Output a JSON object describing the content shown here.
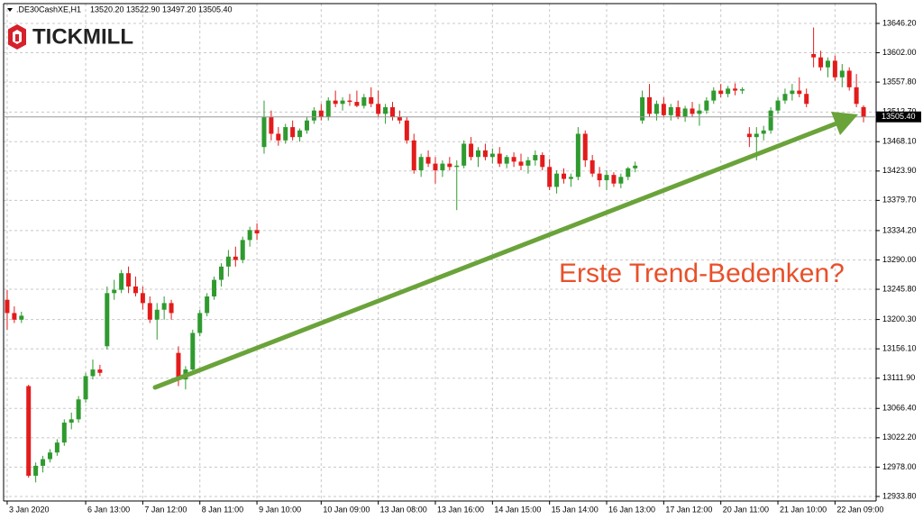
{
  "header": {
    "symbol": ".DE30CashXE,H1",
    "quote": [
      "13520.20",
      "13522.90",
      "13497.20",
      "13505.40"
    ]
  },
  "logo": "TICKMILL",
  "chart_data": {
    "type": "candlestick",
    "categories": [
      "3 Jan 2020",
      null,
      null,
      null,
      null,
      null,
      null,
      null,
      null,
      null,
      null,
      "6 Jan 13:00",
      null,
      null,
      null,
      null,
      null,
      null,
      null,
      "7 Jan 12:00",
      null,
      null,
      null,
      null,
      null,
      null,
      null,
      "8 Jan 11:00",
      null,
      null,
      null,
      null,
      null,
      null,
      null,
      "9 Jan 10:00",
      null,
      null,
      null,
      null,
      null,
      null,
      null,
      null,
      "10 Jan 09:00",
      null,
      null,
      null,
      null,
      null,
      null,
      null,
      "13 Jan 08:00",
      null,
      null,
      null,
      null,
      null,
      null,
      null,
      "13 Jan 16:00",
      null,
      null,
      null,
      null,
      null,
      null,
      null,
      "14 Jan 15:00",
      null,
      null,
      null,
      null,
      null,
      null,
      null,
      "15 Jan 14:00",
      null,
      null,
      null,
      null,
      null,
      null,
      null,
      "16 Jan 13:00",
      null,
      null,
      null,
      null,
      null,
      null,
      null,
      "17 Jan 12:00",
      null,
      null,
      null,
      null,
      null,
      null,
      null,
      "20 Jan 11:00",
      null,
      null,
      null,
      null,
      null,
      null,
      null,
      "21 Jan 10:00",
      null,
      null,
      null,
      null,
      null,
      null,
      null,
      "22 Jan 09:00",
      null,
      null,
      null,
      null
    ],
    "open": [
      13230,
      13210,
      13200,
      13100,
      12965,
      12980,
      12990,
      13000,
      13015,
      13045,
      13050,
      13080,
      13115,
      13125,
      13160,
      13240,
      13245,
      13270,
      13250,
      13240,
      13225,
      13200,
      13215,
      13225,
      13150,
      13110,
      13125,
      13180,
      13210,
      13235,
      13260,
      13280,
      13295,
      13290,
      13320,
      13335,
      13460,
      13505,
      13480,
      13470,
      13490,
      13475,
      13485,
      13500,
      13515,
      13505,
      13530,
      13525,
      13530,
      13528,
      13522,
      13535,
      13525,
      13510,
      13520,
      13505,
      13500,
      13470,
      13425,
      13445,
      13435,
      13425,
      13435,
      13430,
      13432,
      13465,
      13445,
      13455,
      13445,
      13450,
      13435,
      13445,
      13438,
      13432,
      13440,
      13448,
      13430,
      13400,
      13420,
      13412,
      13415,
      13480,
      13440,
      13420,
      13410,
      13418,
      13405,
      13415,
      13428,
      13500,
      13535,
      13510,
      13525,
      13508,
      13520,
      13505,
      13518,
      13510,
      13515,
      13530,
      13545,
      13540,
      13548,
      13545,
      13480,
      13475,
      13480,
      13485,
      13515,
      13530,
      13540,
      13545,
      13540,
      13600,
      13595,
      13580,
      13590,
      13565,
      13575,
      13550,
      13520.2
    ],
    "high": [
      13245,
      13220,
      13212,
      13102,
      12985,
      12995,
      13005,
      13020,
      13050,
      13060,
      13085,
      13120,
      13140,
      13132,
      13250,
      13260,
      13275,
      13280,
      13265,
      13250,
      13235,
      13225,
      13235,
      13230,
      13160,
      13130,
      13185,
      13215,
      13240,
      13265,
      13285,
      13305,
      13310,
      13325,
      13340,
      13345,
      13530,
      13515,
      13490,
      13495,
      13500,
      13488,
      13505,
      13520,
      13525,
      13535,
      13545,
      13535,
      13540,
      13545,
      13540,
      13550,
      13545,
      13525,
      13528,
      13515,
      13505,
      13480,
      13450,
      13455,
      13445,
      13440,
      13445,
      13440,
      13470,
      13475,
      13460,
      13465,
      13458,
      13460,
      13448,
      13452,
      13450,
      13445,
      13455,
      13452,
      13442,
      13425,
      13428,
      13420,
      13490,
      13485,
      13448,
      13430,
      13425,
      13422,
      13420,
      13430,
      13438,
      13545,
      13555,
      13530,
      13535,
      13525,
      13530,
      13522,
      13528,
      13525,
      13535,
      13550,
      13555,
      13552,
      13556,
      13550,
      13490,
      13490,
      13492,
      13520,
      13535,
      13548,
      13555,
      13565,
      13548,
      13640,
      13605,
      13595,
      13598,
      13585,
      13580,
      13570,
      13522.9
    ],
    "low": [
      13185,
      13195,
      13195,
      12962,
      12955,
      12970,
      12985,
      12995,
      13010,
      13035,
      13045,
      13075,
      13110,
      13115,
      13155,
      13230,
      13240,
      13240,
      13235,
      13215,
      13195,
      13170,
      13200,
      13200,
      13100,
      13095,
      13120,
      13175,
      13205,
      13230,
      13250,
      13265,
      13280,
      13285,
      13310,
      13320,
      13450,
      13470,
      13462,
      13465,
      13470,
      13468,
      13480,
      13495,
      13500,
      13500,
      13520,
      13515,
      13522,
      13520,
      13518,
      13520,
      13505,
      13495,
      13500,
      13495,
      13465,
      13420,
      13415,
      13430,
      13405,
      13415,
      13425,
      13365,
      13428,
      13440,
      13430,
      13440,
      13435,
      13430,
      13428,
      13430,
      13425,
      13420,
      13432,
      13425,
      13395,
      13390,
      13405,
      13400,
      13410,
      13430,
      13415,
      13400,
      13395,
      13400,
      13398,
      13410,
      13422,
      13495,
      13505,
      13500,
      13505,
      13500,
      13502,
      13498,
      13505,
      13492,
      13510,
      13525,
      13535,
      13535,
      13538,
      13540,
      13460,
      13440,
      13470,
      13480,
      13510,
      13525,
      13530,
      13535,
      13520,
      13580,
      13575,
      13565,
      13560,
      13550,
      13545,
      13520,
      13497.2
    ],
    "close": [
      13210,
      13200,
      13206,
      12965,
      12980,
      12990,
      13000,
      13015,
      13045,
      13050,
      13080,
      13115,
      13125,
      13120,
      13240,
      13245,
      13270,
      13250,
      13240,
      13225,
      13200,
      13215,
      13225,
      13210,
      13110,
      13125,
      13180,
      13210,
      13235,
      13260,
      13280,
      13295,
      13290,
      13320,
      13335,
      13330,
      13505,
      13480,
      13470,
      13490,
      13475,
      13485,
      13500,
      13515,
      13505,
      13530,
      13525,
      13530,
      13528,
      13522,
      13535,
      13525,
      13510,
      13520,
      13505,
      13500,
      13470,
      13425,
      13445,
      13435,
      13425,
      13435,
      13430,
      13432,
      13465,
      13445,
      13455,
      13445,
      13450,
      13435,
      13445,
      13438,
      13432,
      13440,
      13448,
      13430,
      13400,
      13420,
      13412,
      13415,
      13480,
      13440,
      13420,
      13410,
      13418,
      13405,
      13415,
      13428,
      13432,
      13535,
      13510,
      13525,
      13508,
      13520,
      13505,
      13518,
      13510,
      13515,
      13530,
      13545,
      13540,
      13548,
      13545,
      13547,
      13475,
      13480,
      13485,
      13515,
      13530,
      13540,
      13545,
      13540,
      13525,
      13595,
      13580,
      13590,
      13565,
      13575,
      13550,
      13525,
      13505.4
    ],
    "up_color": "#2f9a2f",
    "down_color": "#e31b1b",
    "ylim": [
      12927,
      13676
    ],
    "yticks": [
      {
        "value": 13646.2,
        "label": "13646.20"
      },
      {
        "value": 13602,
        "label": "13602.00"
      },
      {
        "value": 13557.8,
        "label": "13557.80"
      },
      {
        "value": 13512.7,
        "label": "13512.70"
      },
      {
        "value": 13468.1,
        "label": "13468.10"
      },
      {
        "value": 13423.9,
        "label": "13423.90"
      },
      {
        "value": 13379.7,
        "label": "13379.70"
      },
      {
        "value": 13334.2,
        "label": "13334.20"
      },
      {
        "value": 13290,
        "label": "13290.00"
      },
      {
        "value": 13245.8,
        "label": "13245.80"
      },
      {
        "value": 13200.3,
        "label": "13200.30"
      },
      {
        "value": 13156.1,
        "label": "13156.10"
      },
      {
        "value": 13111.9,
        "label": "13111.90"
      },
      {
        "value": 13066.4,
        "label": "13066.40"
      },
      {
        "value": 13022.2,
        "label": "13022.20"
      },
      {
        "value": 12978,
        "label": "12978.00"
      },
      {
        "value": 12933.8,
        "label": "12933.80"
      }
    ],
    "grid": true,
    "current_price": {
      "value": 13505.4,
      "label": "13505.40"
    },
    "annotation": "Erste Trend-Bedenken?"
  }
}
